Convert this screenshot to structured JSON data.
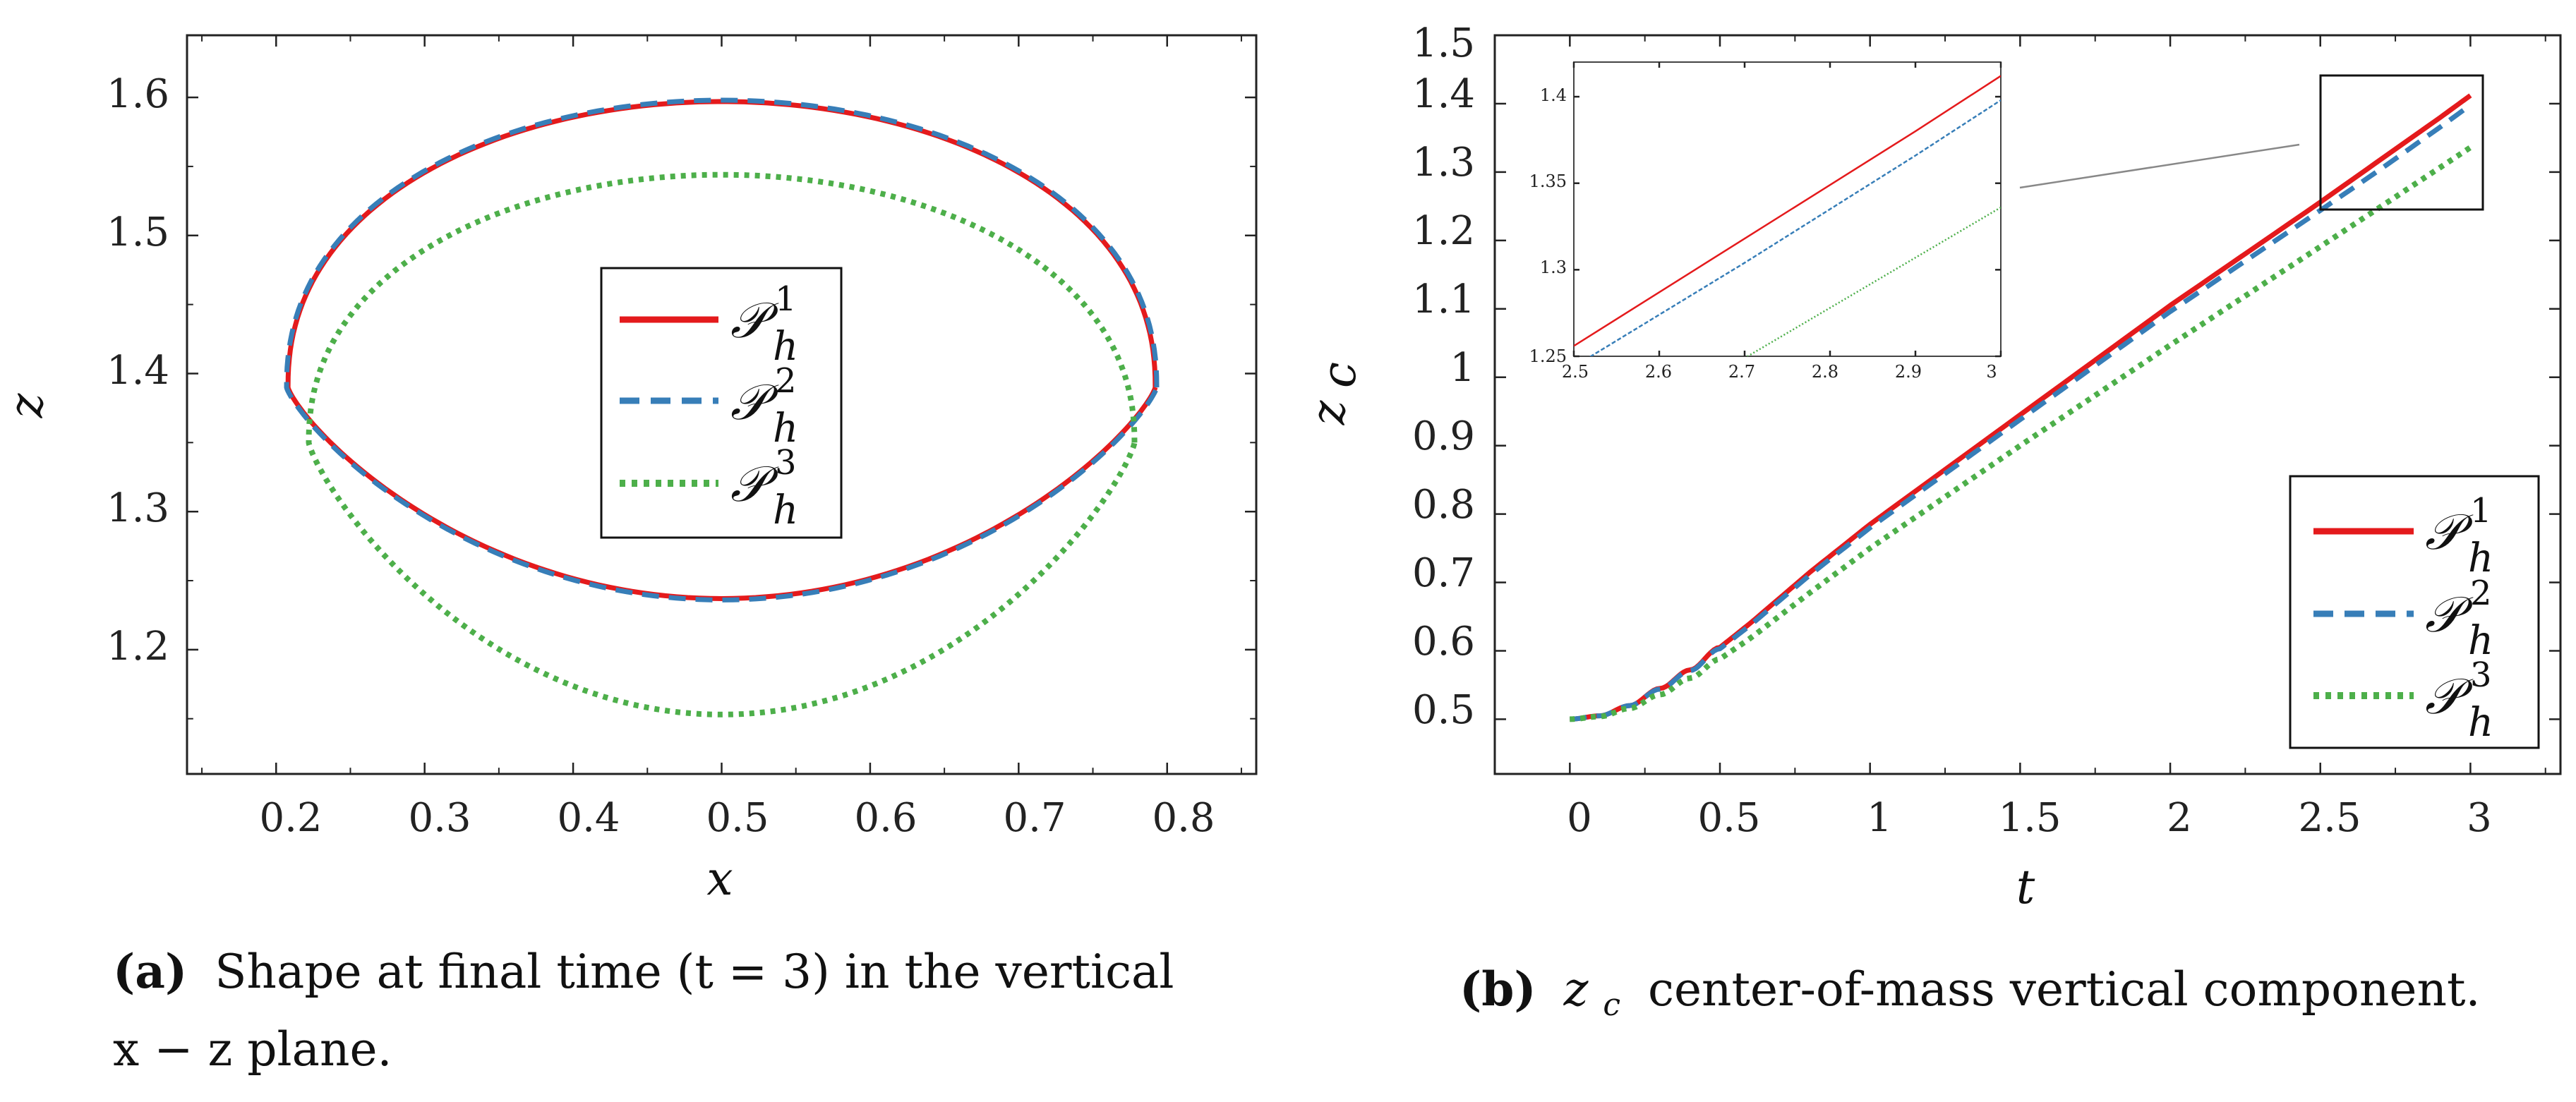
{
  "colors": {
    "p1": "#e41a1c",
    "p2": "#377eb8",
    "p3": "#4daf4a",
    "axis": "#222222"
  },
  "legend": [
    {
      "base": "𝒫",
      "sub": "h",
      "sup": "1"
    },
    {
      "base": "𝒫",
      "sub": "h",
      "sup": "2"
    },
    {
      "base": "𝒫",
      "sub": "h",
      "sup": "3"
    }
  ],
  "chart_data": [
    {
      "type": "line",
      "title": "",
      "xlabel": "x",
      "ylabel": "z",
      "xlim": [
        0.14,
        0.86
      ],
      "ylim": [
        1.11,
        1.645
      ],
      "xticks": [
        "0.2",
        "0.3",
        "0.4",
        "0.5",
        "0.6",
        "0.7",
        "0.8"
      ],
      "yticks": [
        "1.2",
        "1.3",
        "1.4",
        "1.5",
        "1.6"
      ],
      "legend_position": "center",
      "series": [
        {
          "name": "P_h^1",
          "style": "solid",
          "cx": 0.5,
          "x_left": 0.208,
          "x_right": 0.792,
          "z_mid": 1.39,
          "z_top": 1.597,
          "z_bottom": 1.237,
          "x_top": 0.505,
          "x_bottom": 0.502
        },
        {
          "name": "P_h^2",
          "style": "dashed",
          "cx": 0.5,
          "x_left": 0.207,
          "x_right": 0.793,
          "z_mid": 1.39,
          "z_top": 1.598,
          "z_bottom": 1.236,
          "x_top": 0.505,
          "x_bottom": 0.502
        },
        {
          "name": "P_h^3",
          "style": "dotted",
          "cx": 0.5,
          "x_left": 0.222,
          "x_right": 0.778,
          "z_mid": 1.35,
          "z_top": 1.544,
          "z_bottom": 1.153,
          "x_top": 0.5,
          "x_bottom": 0.5
        }
      ],
      "caption": {
        "label": "(a)",
        "text": "Shape at final time (t = 3) in the vertical",
        "text2": "x − z plane."
      }
    },
    {
      "type": "line",
      "title": "",
      "xlabel": "t",
      "ylabel": "z_c",
      "xlim": [
        -0.25,
        3.3
      ],
      "ylim": [
        0.42,
        1.5
      ],
      "xticks": [
        "0",
        "0.5",
        "1",
        "1.5",
        "2",
        "2.5",
        "3"
      ],
      "yticks": [
        "0.5",
        "0.6",
        "0.7",
        "0.8",
        "0.9",
        "1",
        "1.1",
        "1.2",
        "1.3",
        "1.4",
        "1.5"
      ],
      "legend_position": "bottom-right",
      "series": [
        {
          "name": "P_h^1",
          "style": "solid",
          "x": [
            0,
            0.1,
            0.2,
            0.3,
            0.4,
            0.5,
            0.6,
            0.8,
            1.0,
            1.5,
            2.0,
            2.5,
            2.7,
            2.9,
            3.0
          ],
          "y": [
            0.5,
            0.505,
            0.52,
            0.545,
            0.572,
            0.605,
            0.64,
            0.715,
            0.785,
            0.945,
            1.105,
            1.256,
            1.318,
            1.38,
            1.412
          ]
        },
        {
          "name": "P_h^2",
          "style": "dashed",
          "x": [
            0,
            0.1,
            0.2,
            0.3,
            0.4,
            0.5,
            0.6,
            0.8,
            1.0,
            1.5,
            2.0,
            2.5,
            2.7,
            2.9,
            3.0
          ],
          "y": [
            0.5,
            0.505,
            0.52,
            0.544,
            0.571,
            0.603,
            0.637,
            0.711,
            0.78,
            0.938,
            1.096,
            1.244,
            1.304,
            1.366,
            1.398
          ]
        },
        {
          "name": "P_h^3",
          "style": "dotted",
          "x": [
            0,
            0.1,
            0.2,
            0.3,
            0.4,
            0.5,
            0.6,
            0.8,
            1.0,
            1.5,
            2.0,
            2.5,
            2.7,
            2.9,
            3.0
          ],
          "y": [
            0.5,
            0.504,
            0.516,
            0.536,
            0.56,
            0.588,
            0.618,
            0.685,
            0.75,
            0.9,
            1.047,
            1.191,
            1.249,
            1.307,
            1.336
          ]
        }
      ],
      "inset": {
        "xlim": [
          2.5,
          3.0
        ],
        "ylim": [
          1.25,
          1.42
        ],
        "xticks": [
          "2.5",
          "2.6",
          "2.7",
          "2.8",
          "2.9",
          "3"
        ],
        "yticks": [
          "1.25",
          "1.3",
          "1.35",
          "1.4"
        ]
      },
      "caption": {
        "label": "(b)",
        "text": "z",
        "sub": "c",
        "text2": "center-of-mass vertical component."
      }
    }
  ]
}
